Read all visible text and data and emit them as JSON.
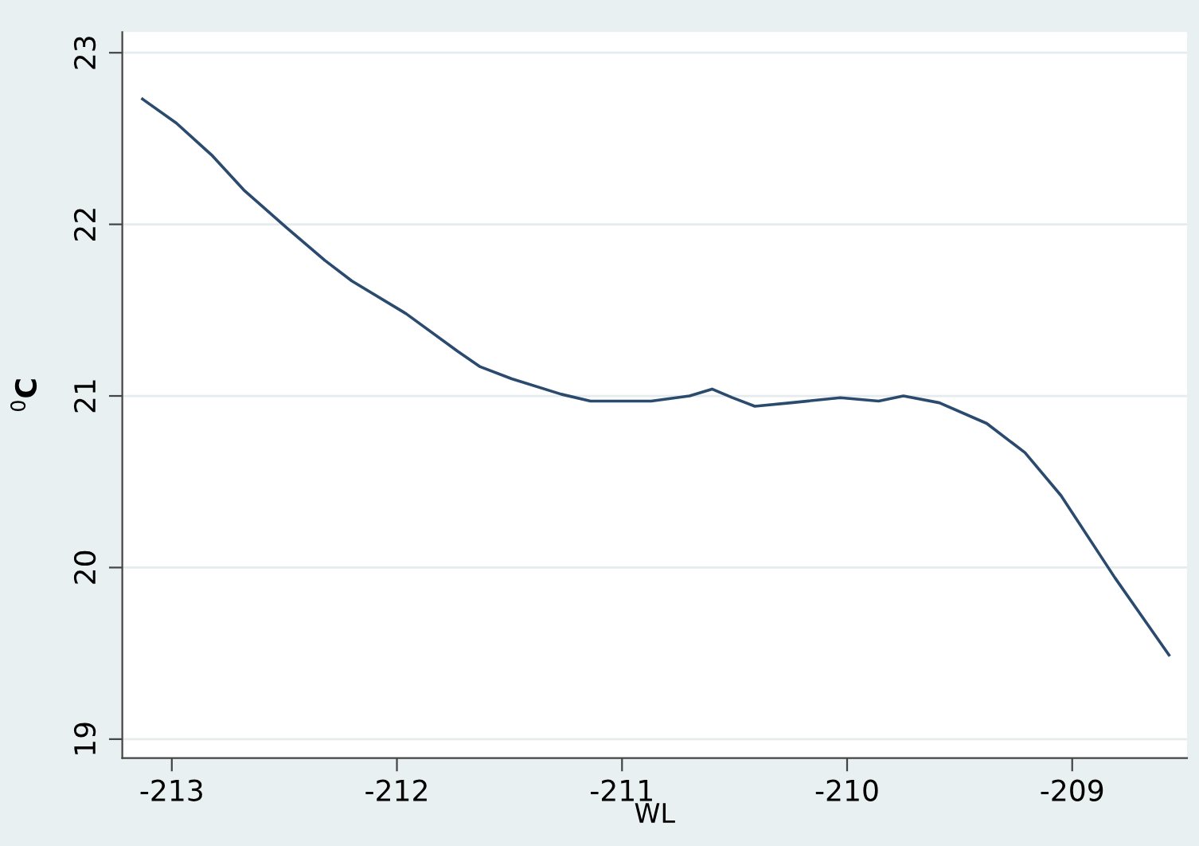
{
  "chart_data": {
    "type": "line",
    "xlabel": "WL",
    "ylabel": "$^{0}$C",
    "x": [
      -213.13,
      -212.98,
      -212.82,
      -212.68,
      -212.49,
      -212.32,
      -212.2,
      -211.96,
      -211.73,
      -211.63,
      -211.49,
      -211.27,
      -211.14,
      -211.0,
      -210.87,
      -210.7,
      -210.6,
      -210.51,
      -210.41,
      -210.25,
      -210.03,
      -209.86,
      -209.75,
      -209.59,
      -209.38,
      -209.21,
      -209.05,
      -208.81,
      -208.57
    ],
    "series": [
      {
        "color": "#2a4a6e",
        "values": [
          22.73,
          22.59,
          22.4,
          22.2,
          21.98,
          21.79,
          21.67,
          21.48,
          21.26,
          21.17,
          21.1,
          21.01,
          20.97,
          20.97,
          20.97,
          21.0,
          21.04,
          20.99,
          20.94,
          20.96,
          20.99,
          20.97,
          21.0,
          20.96,
          20.84,
          20.67,
          20.42,
          19.94,
          19.49
        ]
      }
    ],
    "xlim": [
      -213.22,
      -208.49
    ],
    "ylim": [
      18.89,
      23.12
    ],
    "xticks": [
      -213,
      -212,
      -211,
      -210,
      -209
    ],
    "yticks": [
      19,
      20,
      21,
      22,
      23
    ],
    "grid": "y",
    "legend": false,
    "marker": "none",
    "line_style": "solid"
  }
}
